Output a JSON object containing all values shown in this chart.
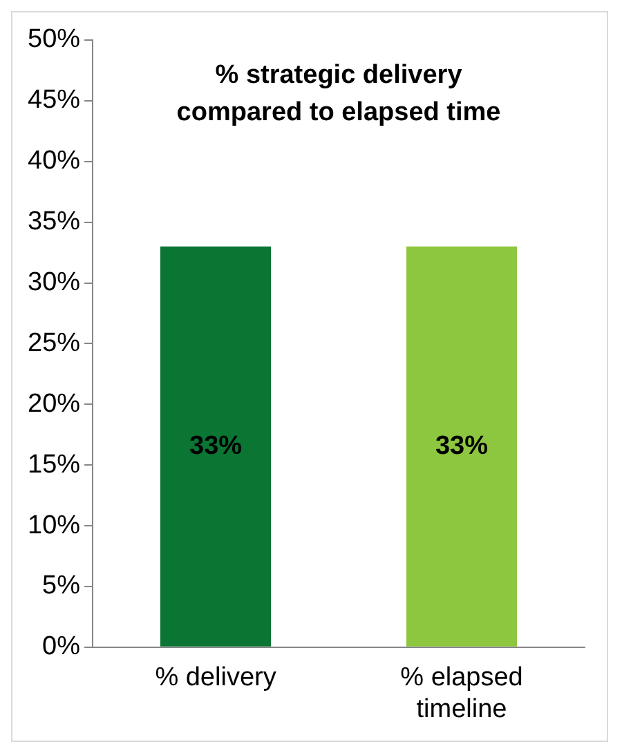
{
  "chart_data": {
    "type": "bar",
    "title": "% strategic delivery compared to elapsed time",
    "categories": [
      "% delivery",
      "% elapsed timeline"
    ],
    "values": [
      33,
      33
    ],
    "colors": [
      "#0b7534",
      "#8dc63f"
    ],
    "value_labels": [
      "33%",
      "33%"
    ],
    "ylim": [
      0,
      50
    ],
    "yticks": [
      {
        "value": 0,
        "label": "0%"
      },
      {
        "value": 5,
        "label": "5%"
      },
      {
        "value": 10,
        "label": "10%"
      },
      {
        "value": 15,
        "label": "15%"
      },
      {
        "value": 20,
        "label": "20%"
      },
      {
        "value": 25,
        "label": "25%"
      },
      {
        "value": 30,
        "label": "30%"
      },
      {
        "value": 35,
        "label": "35%"
      },
      {
        "value": 40,
        "label": "40%"
      },
      {
        "value": 45,
        "label": "45%"
      },
      {
        "value": 50,
        "label": "50%"
      }
    ],
    "grid": false,
    "legend": false
  }
}
